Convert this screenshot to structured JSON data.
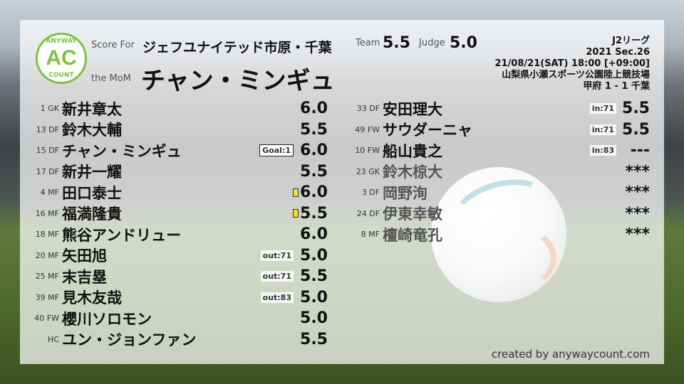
{
  "header": {
    "logo_text": "ANYWAY COUNT",
    "logo_letters": "AC",
    "score_for_label": "Score For",
    "team": "ジェフユナイテッド市原・千葉",
    "mom_label": "the MoM",
    "mom": "チャン・ミンギュ",
    "team_label": "Team",
    "team_score": "5.5",
    "judge_label": "Judge",
    "judge_score": "5.0"
  },
  "match": {
    "league": "J2リーグ",
    "section": "2021 Sec.26",
    "datetime": "21/08/21(SAT) 18:00 [+09:00]",
    "venue": "山梨県小瀬スポーツ公園陸上競技場",
    "result": "甲府 1 - 1 千葉"
  },
  "colors": {
    "brand": "#7cc242",
    "yellow_card": "#f0e020"
  },
  "starters": [
    {
      "pos": "1 GK",
      "name": "新井章太",
      "score": "6.0"
    },
    {
      "pos": "13 DF",
      "name": "鈴木大輔",
      "score": "5.5"
    },
    {
      "pos": "15 DF",
      "name": "チャン・ミンギュ",
      "score": "6.0",
      "badge": "Goal:1"
    },
    {
      "pos": "17 DF",
      "name": "新井一耀",
      "score": "5.5"
    },
    {
      "pos": "4 MF",
      "name": "田口泰士",
      "score": "6.0",
      "yellow_card": true
    },
    {
      "pos": "16 MF",
      "name": "福満隆貴",
      "score": "5.5",
      "yellow_card": true
    },
    {
      "pos": "18 MF",
      "name": "熊谷アンドリュー",
      "score": "6.0"
    },
    {
      "pos": "20 MF",
      "name": "矢田旭",
      "score": "5.0",
      "badge": "out:71"
    },
    {
      "pos": "25 MF",
      "name": "末吉塁",
      "score": "5.5",
      "badge": "out:71"
    },
    {
      "pos": "39 MF",
      "name": "見木友哉",
      "score": "5.0",
      "badge": "out:83"
    },
    {
      "pos": "40 FW",
      "name": "櫻川ソロモン",
      "score": "5.0"
    },
    {
      "pos": "HC",
      "name": "ユン・ジョンファン",
      "score": "5.5"
    }
  ],
  "subs": [
    {
      "pos": "33 DF",
      "name": "安田理大",
      "score": "5.5",
      "badge": "in:71"
    },
    {
      "pos": "49 FW",
      "name": "サウダーニャ",
      "score": "5.5",
      "badge": "in:71"
    },
    {
      "pos": "10 FW",
      "name": "船山貴之",
      "score": "---",
      "badge": "in:83"
    },
    {
      "pos": "23 GK",
      "name": "鈴木椋大",
      "score": "***",
      "unused": true
    },
    {
      "pos": "3 DF",
      "name": "岡野洵",
      "score": "***",
      "unused": true
    },
    {
      "pos": "24 DF",
      "name": "伊東幸敏",
      "score": "***",
      "unused": true
    },
    {
      "pos": "8 MF",
      "name": "檀崎竜孔",
      "score": "***",
      "unused": true
    }
  ],
  "footer": {
    "credit": "created by anywaycount.com"
  }
}
